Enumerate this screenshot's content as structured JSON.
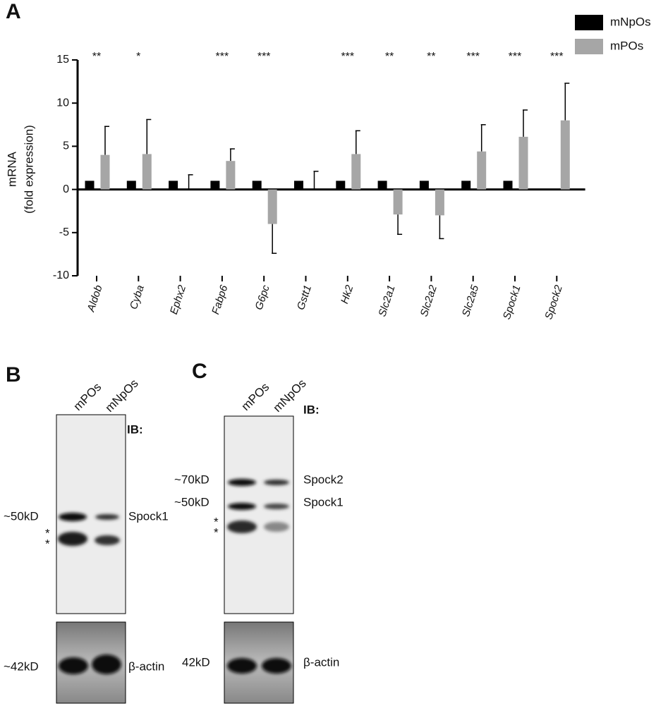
{
  "panel_letters": [
    "A",
    "B",
    "C"
  ],
  "chart_data": {
    "type": "bar",
    "ylabel": [
      "mRNA",
      "(fold expression)"
    ],
    "categories": [
      "Aldob",
      "Cyba",
      "Ephx2",
      "Fabp6",
      "G6pc",
      "Gstt1",
      "Hk2",
      "Slc2a1",
      "Slc2a2",
      "Slc2a5",
      "Spock1",
      "Spock2"
    ],
    "series": [
      {
        "name": "mNpOs",
        "color": "#000000",
        "values": [
          1,
          1,
          1,
          1,
          1,
          1,
          1,
          1,
          1,
          1,
          1,
          null
        ]
      },
      {
        "name": "mPOs",
        "color": "#a6a6a6",
        "values": [
          4.0,
          4.1,
          0,
          3.3,
          -4.0,
          0,
          4.1,
          -2.9,
          -3.0,
          4.4,
          6.1,
          8.0
        ],
        "errors": [
          3.3,
          4.0,
          1.7,
          1.4,
          3.4,
          2.1,
          2.7,
          2.3,
          2.7,
          3.1,
          3.1,
          4.3
        ]
      }
    ],
    "significance": [
      "**",
      "*",
      null,
      "***",
      "***",
      null,
      "***",
      "**",
      "**",
      "***",
      "***",
      "***"
    ],
    "ylim": [
      -10,
      15
    ],
    "yticks": [
      15,
      10,
      5,
      0,
      -5,
      -10
    ],
    "legend": "top-right"
  },
  "blots": [
    {
      "lanes": [
        "mPOs",
        "mNpOs"
      ],
      "ib": "IB:",
      "markers": [
        "~50kD",
        "*",
        "*"
      ],
      "targets": [
        "Spock1"
      ],
      "loading_marker": "~42kD",
      "loading": "β-actin"
    },
    {
      "lanes": [
        "mPOs",
        "mNpOs"
      ],
      "ib": "IB:",
      "markers": [
        "~70kD",
        "~50kD",
        "*",
        "*"
      ],
      "targets": [
        "Spock2",
        "Spock1"
      ],
      "loading_marker": "42kD",
      "loading": "β-actin"
    }
  ]
}
